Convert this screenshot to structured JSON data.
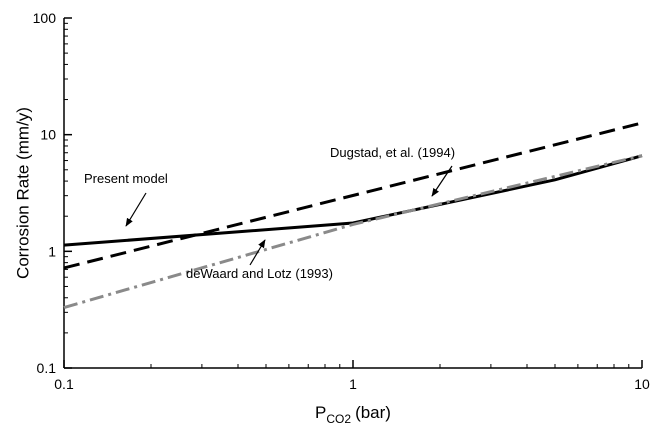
{
  "chart_data": {
    "type": "line",
    "x_label": [
      "P",
      "CO2",
      "(bar)"
    ],
    "y_label": "Corrosion Rate (mm/y)",
    "log_x": true,
    "log_y": true,
    "xlim": [
      0.1,
      10
    ],
    "xticks": [
      0.1,
      1,
      10
    ],
    "ylim": [
      0.1,
      100
    ],
    "yticks": [
      0.1,
      1,
      10,
      100
    ],
    "series": [
      {
        "name": "Present model",
        "color": "#000000",
        "dash": "solid",
        "x": [
          0.1,
          1,
          5,
          10
        ],
        "values": [
          1.13,
          1.75,
          4.1,
          6.6
        ]
      },
      {
        "name": "Dugstad, et al. (1994)",
        "color": "#000000",
        "dash": "dashed",
        "x": [
          0.1,
          10
        ],
        "values": [
          0.72,
          12.6
        ]
      },
      {
        "name": "deWaard and Lotz (1993)",
        "color": "#8a8a8a",
        "dash": "dashdot",
        "x": [
          0.1,
          1,
          10
        ],
        "values": [
          0.33,
          1.7,
          6.6
        ]
      }
    ]
  }
}
